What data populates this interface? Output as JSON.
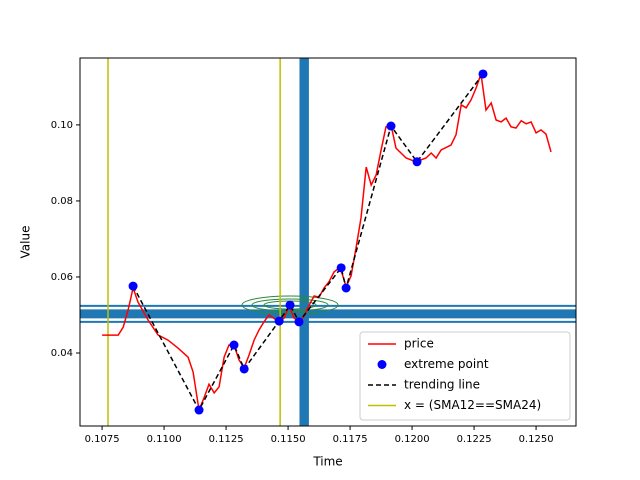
{
  "chart_data": {
    "type": "line",
    "xlabel": "Time",
    "ylabel": "Value",
    "xlim": [
      0.10661,
      0.12661
    ],
    "ylim": [
      0.0208,
      0.1176
    ],
    "xticks": [
      0.1075,
      {
        "value": 0.11,
        "label": "0.1100"
      },
      0.1125,
      {
        "value": 0.115,
        "label": "0.1150"
      },
      0.1175,
      {
        "value": 0.12,
        "label": "0.1200"
      },
      0.1225,
      {
        "value": 0.125,
        "label": "0.1250"
      }
    ],
    "yticks": [
      0.04,
      0.06,
      0.08,
      {
        "value": 0.1,
        "label": "0.10"
      }
    ],
    "legend": "lower right",
    "series": [
      {
        "name": "price",
        "color": "#ff0000",
        "style": "line",
        "x": [
          0.1075,
          0.1079,
          0.10815,
          0.10835,
          0.10855,
          0.10875,
          0.10895,
          0.10935,
          0.10976,
          0.11016,
          0.11056,
          0.11097,
          0.11117,
          0.11141,
          0.11161,
          0.11181,
          0.11202,
          0.11222,
          0.11242,
          0.11262,
          0.11282,
          0.11302,
          0.11323,
          0.11343,
          0.11363,
          0.11383,
          0.11403,
          0.11423,
          0.11464,
          0.11484,
          0.11504,
          0.11524,
          0.11544,
          0.11565,
          0.11585,
          0.11605,
          0.11625,
          0.11645,
          0.11665,
          0.11685,
          0.11706,
          0.11714,
          0.11734,
          0.11754,
          0.11774,
          0.11794,
          0.11815,
          0.11835,
          0.11855,
          0.11875,
          0.11895,
          0.11915,
          0.11935,
          0.11976,
          0.12016,
          0.12056,
          0.12077,
          0.12097,
          0.12117,
          0.12157,
          0.12177,
          0.12198,
          0.12218,
          0.12238,
          0.12258,
          0.12278,
          0.12298,
          0.12319,
          0.12339,
          0.12359,
          0.12379,
          0.12399,
          0.12419,
          0.1244,
          0.1246,
          0.1248,
          0.125,
          0.1252,
          0.1254,
          0.1256
        ],
        "values": [
          0.0447,
          0.0447,
          0.0447,
          0.0468,
          0.0513,
          0.0571,
          0.0534,
          0.0487,
          0.0447,
          0.0434,
          0.0413,
          0.0389,
          0.035,
          0.025,
          0.0282,
          0.0318,
          0.0295,
          0.0311,
          0.0389,
          0.0421,
          0.0421,
          0.0382,
          0.0361,
          0.0395,
          0.0434,
          0.0461,
          0.0482,
          0.05,
          0.0482,
          0.0492,
          0.0524,
          0.0492,
          0.0482,
          0.0497,
          0.0526,
          0.055,
          0.0547,
          0.0571,
          0.0587,
          0.0613,
          0.0624,
          0.0618,
          0.0574,
          0.0603,
          0.0676,
          0.0755,
          0.0889,
          0.0842,
          0.0868,
          0.0934,
          0.0995,
          0.1,
          0.0939,
          0.0913,
          0.0903,
          0.0913,
          0.0926,
          0.0913,
          0.0934,
          0.0947,
          0.0974,
          0.1053,
          0.1045,
          0.1066,
          0.1097,
          0.1134,
          0.1039,
          0.1058,
          0.1013,
          0.1008,
          0.1018,
          0.0995,
          0.0992,
          0.1011,
          0.1003,
          0.1008,
          0.0979,
          0.0987,
          0.0976,
          0.0929
        ]
      },
      {
        "name": "extreme point",
        "color": "#0000ff",
        "style": "scatter",
        "x": [
          0.10875,
          0.11141,
          0.11282,
          0.11323,
          0.11464,
          0.11508,
          0.11544,
          0.11714,
          0.11734,
          0.11915,
          0.1202,
          0.12286
        ],
        "values": [
          0.0576,
          0.025,
          0.0421,
          0.0358,
          0.0484,
          0.0526,
          0.0482,
          0.0624,
          0.0571,
          0.0997,
          0.0903,
          0.1134
        ]
      },
      {
        "name": "trending line",
        "color": "#000000",
        "style": "dashed",
        "x": [
          0.10875,
          0.11141,
          0.11282,
          0.11323,
          0.11464,
          0.11508,
          0.11544,
          0.11714,
          0.11734,
          0.11915,
          0.1202,
          0.12286
        ],
        "values": [
          0.0576,
          0.025,
          0.0421,
          0.0358,
          0.0484,
          0.0526,
          0.0482,
          0.0624,
          0.0571,
          0.0997,
          0.0903,
          0.1134
        ]
      },
      {
        "name": "x = (SMA12==SMA24)",
        "color": "#bfbf00",
        "style": "vline",
        "x": [
          0.10774,
          0.11468
        ]
      }
    ],
    "reference_lines": {
      "color": "#1f77b4",
      "x": [
        0.1155,
        0.11565,
        0.1158
      ],
      "y": [
        0.0482,
        0.0503,
        0.0524
      ]
    }
  }
}
